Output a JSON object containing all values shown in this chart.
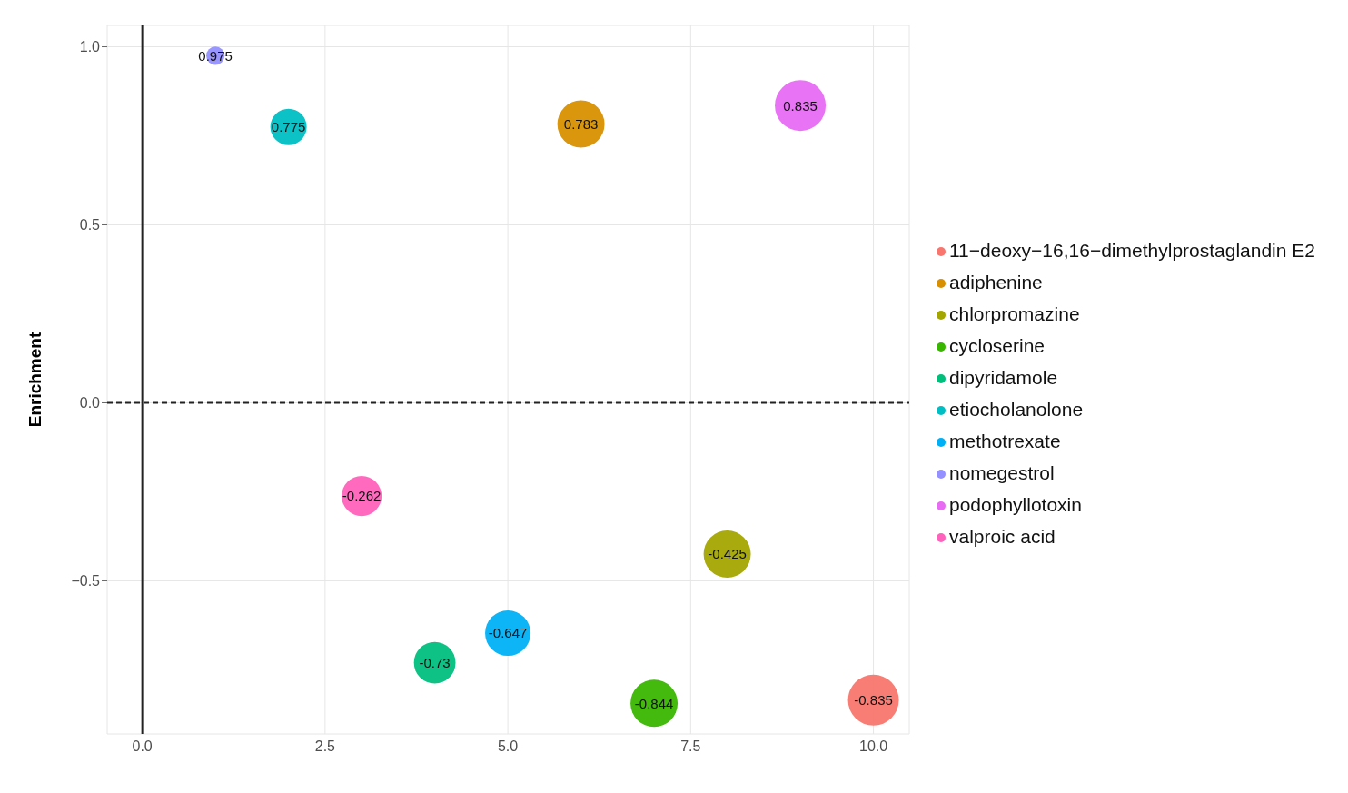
{
  "chart_data": {
    "type": "bubble",
    "ylabel": "Enrichment",
    "series": [
      {
        "name": "11−deoxy−16,16−dimethylprostaglandin E2",
        "color": "#f8766d",
        "x": [
          10
        ],
        "values": [
          -0.835
        ],
        "sizes": [
          1
        ]
      },
      {
        "name": "adiphenine",
        "color": "#d89000",
        "x": [
          6
        ],
        "values": [
          0.783
        ],
        "sizes": [
          0.86
        ]
      },
      {
        "name": "chlorpromazine",
        "color": "#a3a500",
        "x": [
          8
        ],
        "values": [
          -0.425
        ],
        "sizes": [
          0.86
        ]
      },
      {
        "name": "cycloserine",
        "color": "#39b600",
        "x": [
          7
        ],
        "values": [
          -0.844
        ],
        "sizes": [
          0.86
        ]
      },
      {
        "name": "dipyridamole",
        "color": "#00bf7d",
        "x": [
          4
        ],
        "values": [
          -0.73
        ],
        "sizes": [
          0.67
        ]
      },
      {
        "name": "etiocholanolone",
        "color": "#00bfc4",
        "x": [
          2
        ],
        "values": [
          0.775
        ],
        "sizes": [
          0.51
        ]
      },
      {
        "name": "methotrexate",
        "color": "#00b0f6",
        "x": [
          5
        ],
        "values": [
          -0.647
        ],
        "sizes": [
          0.8
        ]
      },
      {
        "name": "nomegestrol",
        "color": "#9590ff",
        "x": [
          1
        ],
        "values": [
          0.975
        ],
        "sizes": [
          0.13
        ]
      },
      {
        "name": "podophyllotoxin",
        "color": "#e76bf3",
        "x": [
          9
        ],
        "values": [
          0.835
        ],
        "sizes": [
          1
        ]
      },
      {
        "name": "valproic acid",
        "color": "#ff62bc",
        "x": [
          3
        ],
        "values": [
          -0.262
        ],
        "sizes": [
          0.62
        ]
      }
    ],
    "xlim": [
      -0.48,
      10.49
    ],
    "ylim": [
      -0.93,
      1.06
    ],
    "xticks": [
      {
        "value": 0,
        "label": "0.0"
      },
      {
        "value": 2.5,
        "label": "2.5"
      },
      {
        "value": 5,
        "label": "5.0"
      },
      {
        "value": 7.5,
        "label": "7.5"
      },
      {
        "value": 10,
        "label": "10.0"
      }
    ],
    "yticks": [
      {
        "value": -0.5,
        "label": "−0.5"
      },
      {
        "value": 0,
        "label": "0.0"
      },
      {
        "value": 0.5,
        "label": "0.5"
      },
      {
        "value": 1,
        "label": "1.0"
      }
    ],
    "ref_lines": [
      {
        "axis": "x",
        "value": 0,
        "color": "#222222",
        "line_style": "solid"
      },
      {
        "axis": "y",
        "value": 0,
        "color": "#222222",
        "line_style": "dashed"
      }
    ],
    "grid": true,
    "legend": "right",
    "marker": "circle",
    "data_labels": true
  }
}
